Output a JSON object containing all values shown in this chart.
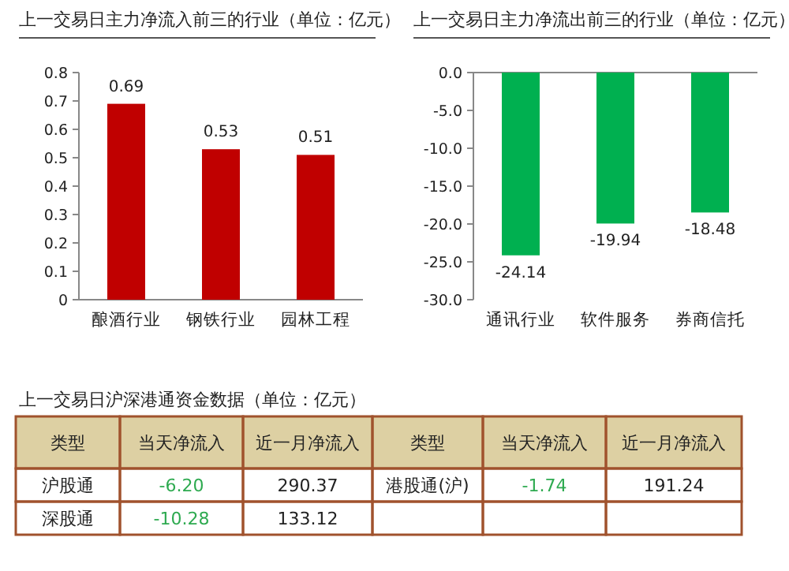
{
  "chart_data": [
    {
      "type": "bar",
      "title": "上一交易日主力净流入前三的行业（单位：亿元）",
      "categories": [
        "酿酒行业",
        "钢铁行业",
        "园林工程"
      ],
      "values": [
        0.69,
        0.53,
        0.51
      ],
      "color": "#c00000",
      "ylim": [
        0,
        0.8
      ],
      "yticks": [
        0,
        0.1,
        0.2,
        0.3,
        0.4,
        0.5,
        0.6,
        0.7,
        0.8
      ],
      "data_labels": true
    },
    {
      "type": "bar",
      "title": "上一交易日主力净流出前三的行业（单位：亿元）",
      "categories": [
        "通讯行业",
        "软件服务",
        "券商信托"
      ],
      "values": [
        -24.14,
        -19.94,
        -18.48
      ],
      "color": "#00b050",
      "ylim": [
        -30,
        0
      ],
      "yticks": [
        {
          "value": 0,
          "label": "0.0"
        },
        {
          "value": -5,
          "label": "-5.0"
        },
        {
          "value": -10,
          "label": "-10.0"
        },
        {
          "value": -15,
          "label": "-15.0"
        },
        {
          "value": -20,
          "label": "-20.0"
        },
        {
          "value": -25,
          "label": "-25.0"
        },
        {
          "value": -30,
          "label": "-30.0"
        }
      ],
      "data_labels": true
    },
    {
      "type": "other",
      "title": "上一交易日沪深港通资金数据（单位：亿元）",
      "annotations": [
        "类型",
        "当天净流入",
        "近一月净流入",
        "类型",
        "当天净流入",
        "近一月净流入",
        "沪股通",
        "-6.20",
        "290.37",
        "港股通(沪)",
        "-1.74",
        "191.24",
        "深股通",
        "-10.28",
        "133.12",
        null,
        null,
        null
      ]
    }
  ]
}
